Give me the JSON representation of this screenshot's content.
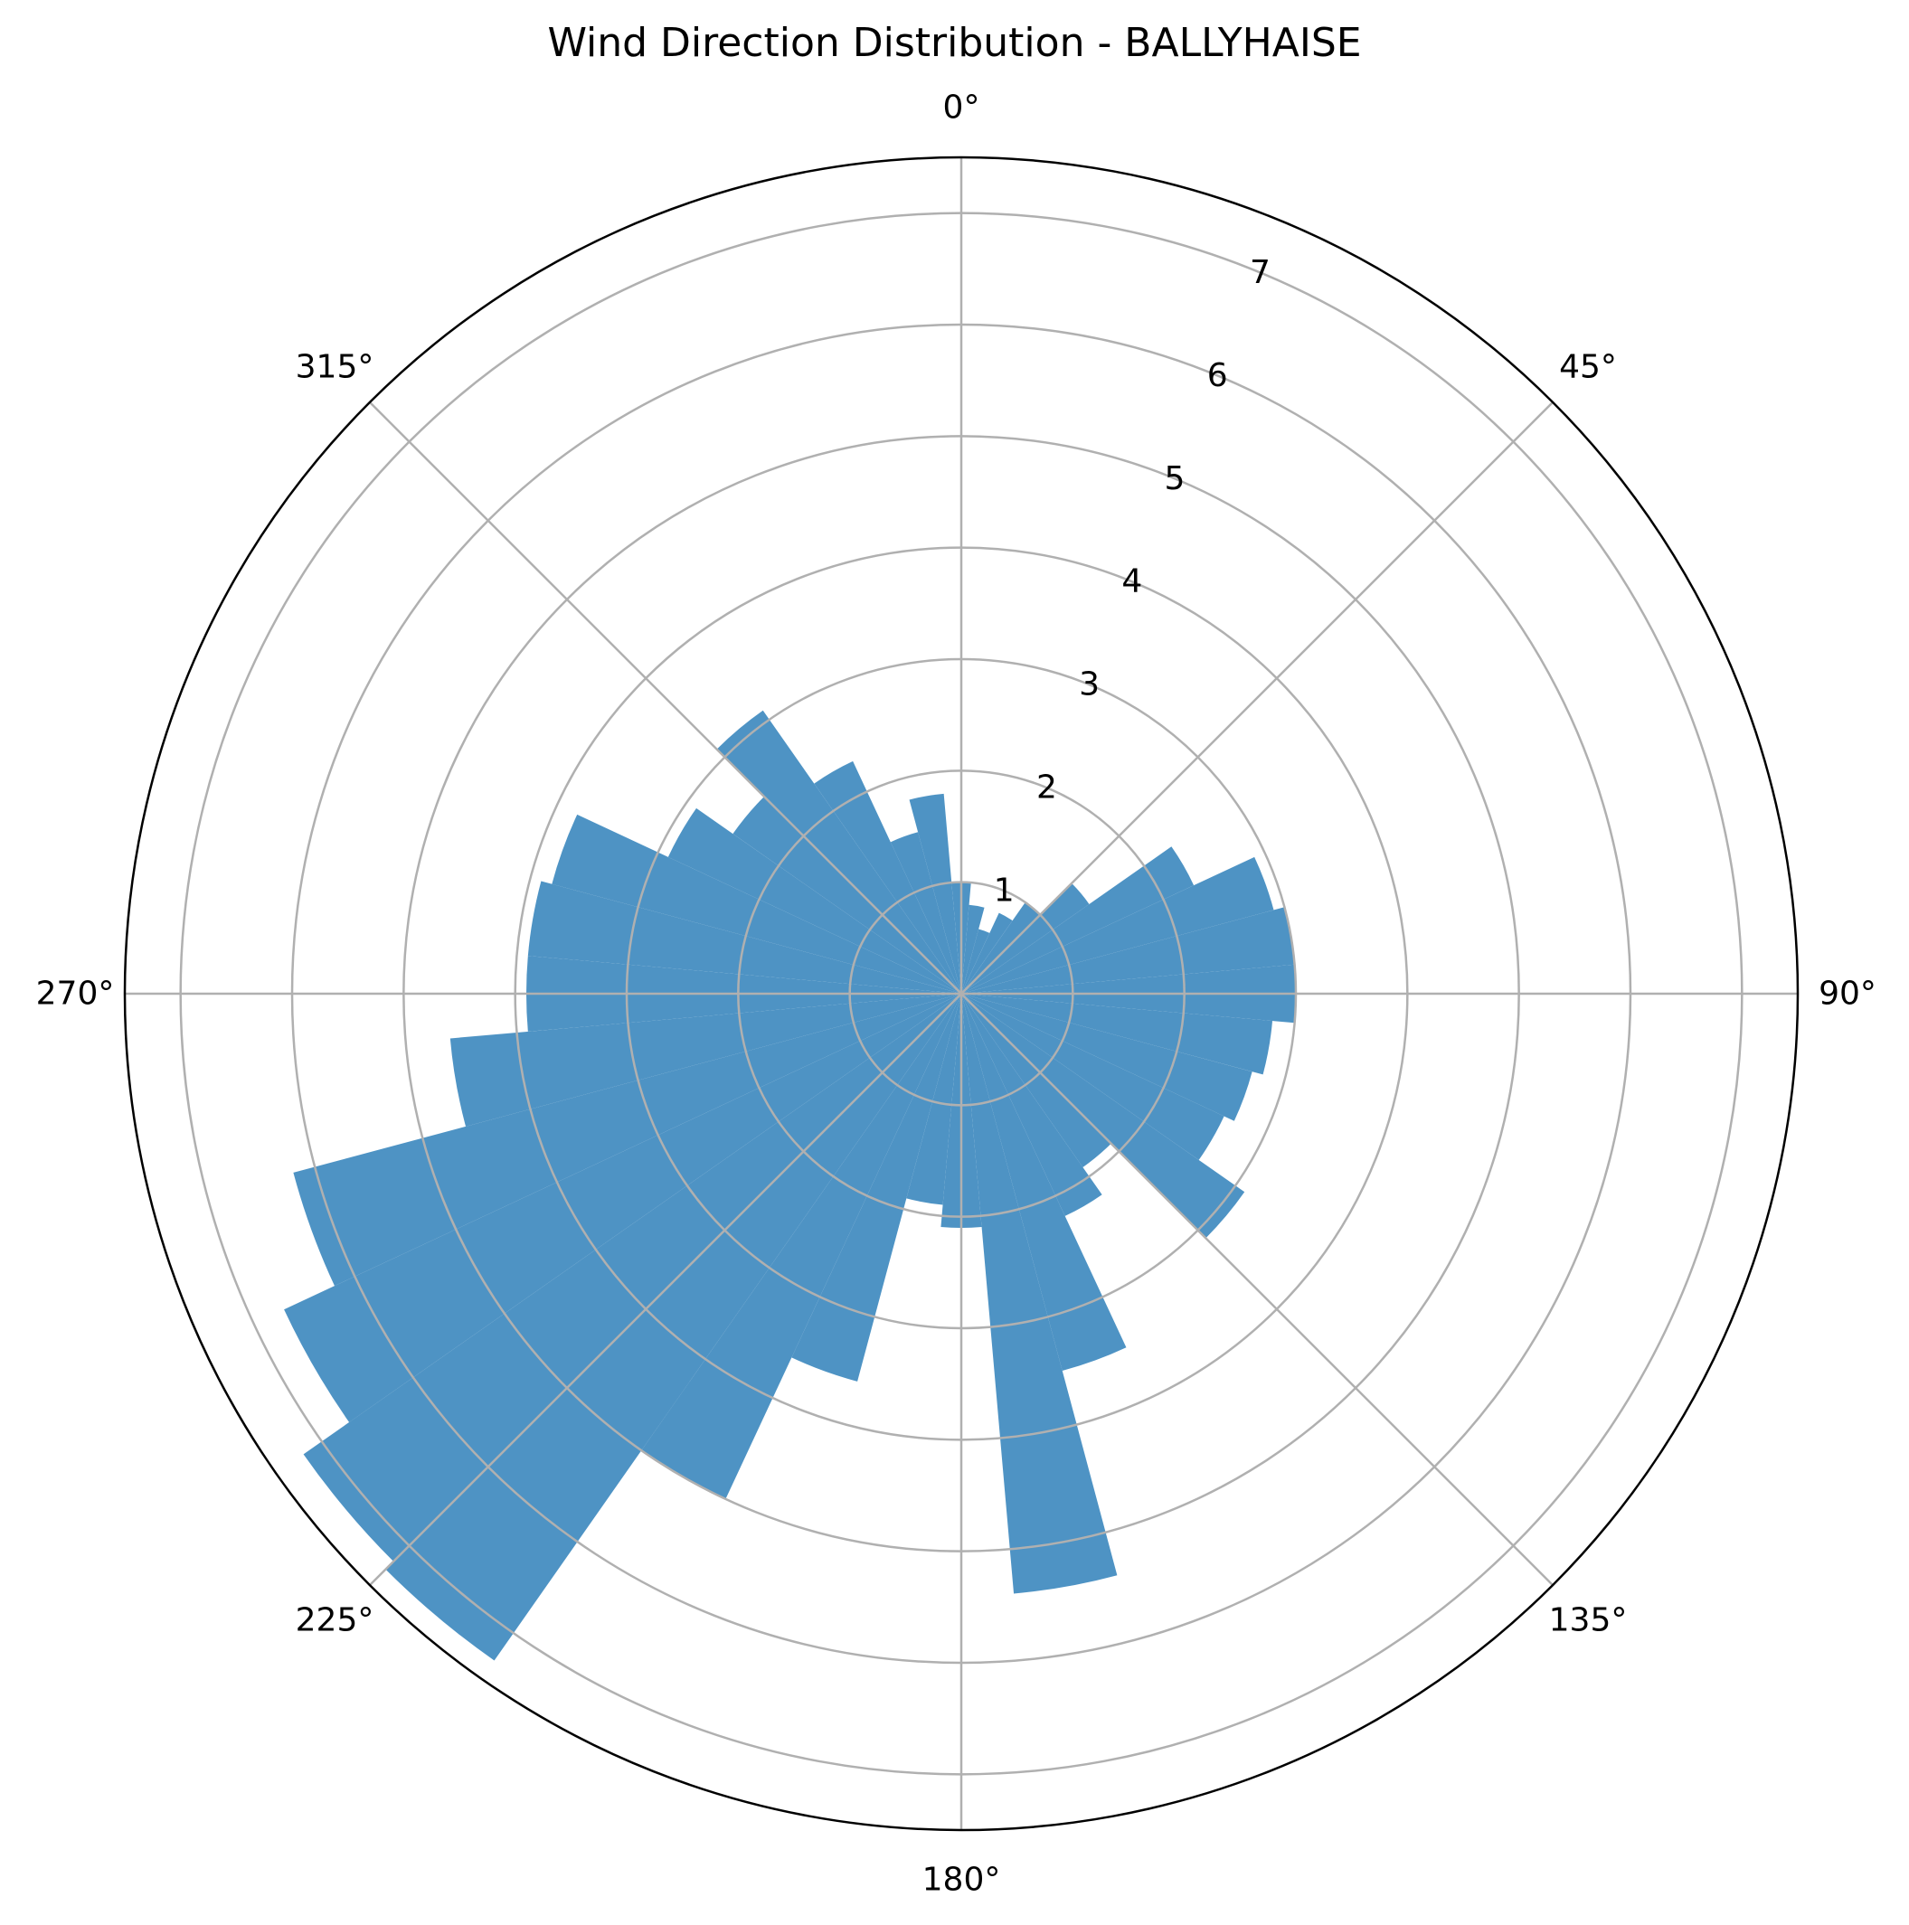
{
  "chart_data": {
    "type": "bar",
    "subtype": "polar",
    "title": "Wind Direction Distribution - BALLYHAISE",
    "theta_zero": "N",
    "theta_direction": "clockwise",
    "bin_width_deg": 10,
    "rlim": [
      0,
      7.5
    ],
    "grid": true,
    "angle_ticks": [
      {
        "deg": 0,
        "label": "0°"
      },
      {
        "deg": 45,
        "label": "45°"
      },
      {
        "deg": 90,
        "label": "90°"
      },
      {
        "deg": 135,
        "label": "135°"
      },
      {
        "deg": 180,
        "label": "180°"
      },
      {
        "deg": 225,
        "label": "225°"
      },
      {
        "deg": 270,
        "label": "270°"
      },
      {
        "deg": 315,
        "label": "315°"
      }
    ],
    "radial_ticks": [
      {
        "value": 1,
        "label": "1"
      },
      {
        "value": 2,
        "label": "2"
      },
      {
        "value": 3,
        "label": "3"
      },
      {
        "value": 4,
        "label": "4"
      },
      {
        "value": 5,
        "label": "5"
      },
      {
        "value": 6,
        "label": "6"
      },
      {
        "value": 7,
        "label": "7"
      }
    ],
    "color": "#4c92c3",
    "directions": [
      0,
      10,
      20,
      30,
      40,
      50,
      60,
      70,
      80,
      90,
      100,
      110,
      120,
      130,
      140,
      150,
      160,
      170,
      180,
      190,
      200,
      210,
      220,
      230,
      240,
      250,
      260,
      270,
      280,
      290,
      300,
      310,
      320,
      330,
      340,
      350
    ],
    "values": [
      1.0,
      0.8,
      0.6,
      0.8,
      1.0,
      1.4,
      2.3,
      2.9,
      3.0,
      3.0,
      2.8,
      2.7,
      2.6,
      3.1,
      1.9,
      2.2,
      3.5,
      5.4,
      2.1,
      1.9,
      3.6,
      5.0,
      7.3,
      7.2,
      6.7,
      6.2,
      4.6,
      3.9,
      3.9,
      3.8,
      2.9,
      2.5,
      3.1,
      2.3,
      1.5,
      1.8
    ]
  }
}
